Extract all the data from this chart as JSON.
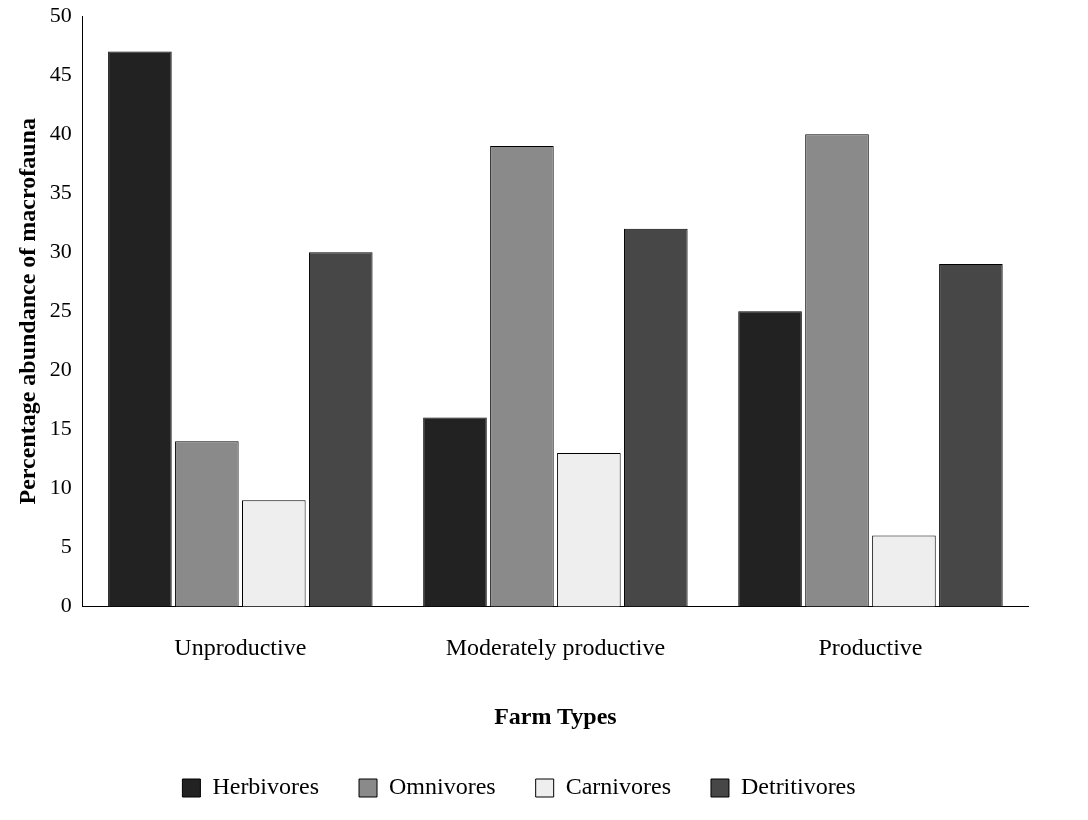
{
  "chart_data": {
    "type": "bar",
    "xlabel": "Farm Types",
    "ylabel": "Percentage abundance of macrofauna",
    "categories": [
      "Unproductive",
      "Moderately productive",
      "Productive"
    ],
    "series": [
      {
        "name": "Herbivores",
        "color": "#222222",
        "values": [
          47,
          16,
          25
        ]
      },
      {
        "name": "Omnivores",
        "color": "#8a8a8a",
        "values": [
          14,
          39,
          40
        ]
      },
      {
        "name": "Carnivores",
        "color": "#eeeeee",
        "values": [
          9,
          13,
          6
        ]
      },
      {
        "name": "Detritivores",
        "color": "#474747",
        "values": [
          30,
          32,
          29
        ]
      }
    ],
    "ylim": [
      0,
      50
    ],
    "yticks": [
      0,
      5,
      10,
      15,
      20,
      25,
      30,
      35,
      40,
      45,
      50
    ],
    "grid": false,
    "legend": "bottom"
  }
}
